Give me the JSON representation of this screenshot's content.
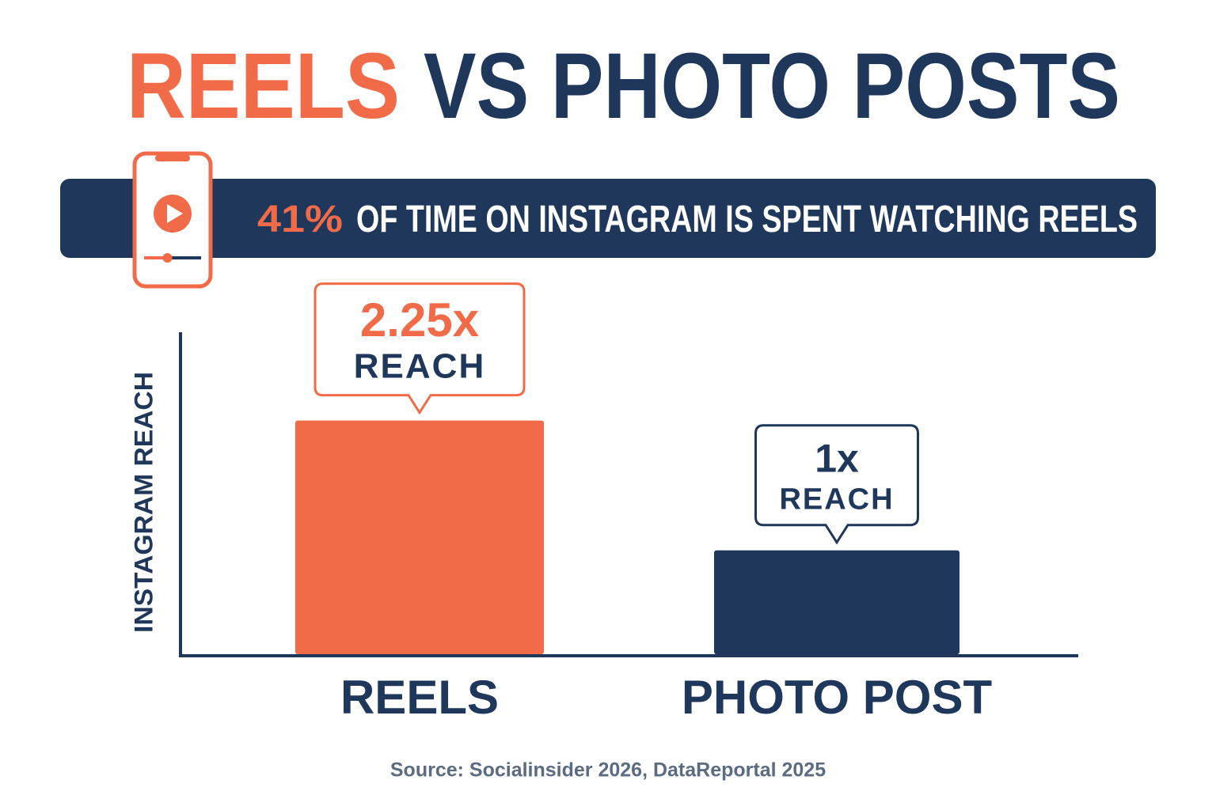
{
  "chart_data": {
    "type": "bar",
    "title": [
      "REELS",
      "VS PHOTO POSTS"
    ],
    "annotation": {
      "value": 41,
      "label": "41%",
      "text": "OF TIME ON INSTAGRAM IS SPENT WATCHING REELS"
    },
    "y_label": "INSTAGRAM REACH",
    "categories": [
      "REELS",
      "PHOTO POST"
    ],
    "values": [
      2.25,
      1
    ],
    "value_labels": [
      "2.25x",
      "1x"
    ],
    "value_sublabel": "REACH",
    "colors": [
      "#f26b48",
      "#1e375a"
    ],
    "ylim": [
      0,
      3.1
    ],
    "source": "Source: Socialinsider 2026, DataReportal 2025"
  }
}
